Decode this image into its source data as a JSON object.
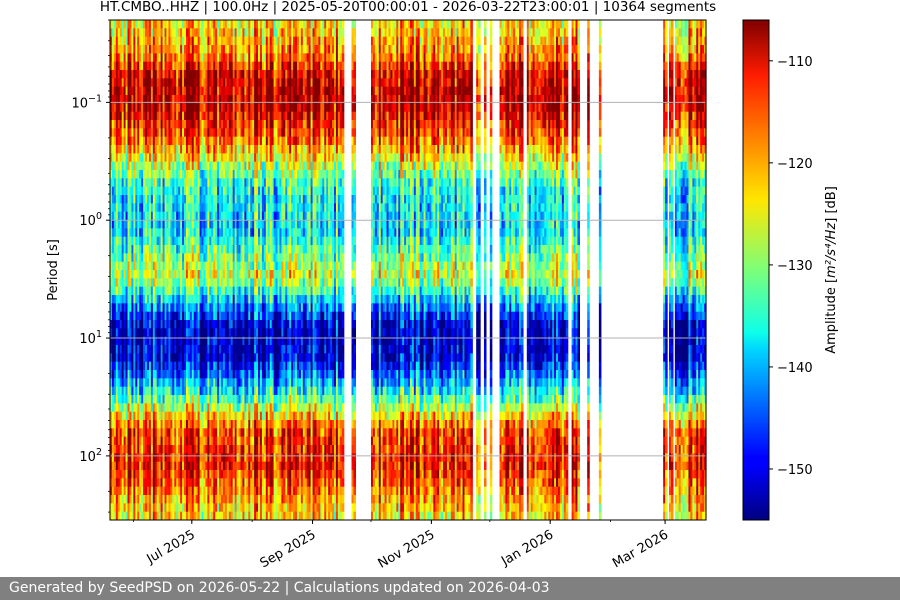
{
  "chart_data": {
    "type": "heatmap",
    "title": "HT.CMBO..HHZ | 100.0Hz | 2025-05-20T00:00:01 - 2026-03-22T23:00:01 | 10364 segments",
    "ylabel": "Period [s]",
    "y_scale": "log",
    "y_inverted": true,
    "ylim_period_s": [
      0.02,
      350
    ],
    "xlim": [
      "2025-05-20",
      "2026-03-22"
    ],
    "x_ticks": [
      {
        "date": "2025-07-01",
        "label": "Jul 2025"
      },
      {
        "date": "2025-09-01",
        "label": "Sep 2025"
      },
      {
        "date": "2025-11-01",
        "label": "Nov 2025"
      },
      {
        "date": "2026-01-01",
        "label": "Jan 2026"
      },
      {
        "date": "2026-03-01",
        "label": "Mar 2026"
      }
    ],
    "y_ticks": [
      {
        "value": 0.1,
        "base": "10",
        "exp": "−1"
      },
      {
        "value": 1,
        "base": "10",
        "exp": "0"
      },
      {
        "value": 10,
        "base": "10",
        "exp": "1"
      },
      {
        "value": 100,
        "base": "10",
        "exp": "2"
      }
    ],
    "colorbar": {
      "label_prefix": "Amplitude [",
      "label_unit": "m²/s⁴/Hz",
      "label_suffix": "] [dB]",
      "range_db": [
        -155,
        -106
      ],
      "ticks": [
        "−110",
        "−120",
        "−130",
        "−140",
        "−150"
      ],
      "tick_values": [
        -110,
        -120,
        -130,
        -140,
        -150
      ],
      "colormap": "jet"
    },
    "grid": true,
    "data_gaps": [
      [
        "2025-09-17",
        "2025-09-21"
      ],
      [
        "2025-09-23",
        "2025-10-01"
      ],
      [
        "2025-11-22",
        "2025-11-24"
      ],
      [
        "2025-11-26",
        "2025-11-28"
      ],
      [
        "2025-11-29",
        "2025-12-01"
      ],
      [
        "2025-12-02",
        "2025-12-06"
      ],
      [
        "2025-12-18",
        "2025-12-20"
      ],
      [
        "2026-01-10",
        "2026-01-12"
      ],
      [
        "2026-01-16",
        "2026-01-20"
      ],
      [
        "2026-01-21",
        "2026-01-26"
      ],
      [
        "2026-01-27",
        "2026-02-28"
      ],
      [
        "2026-03-02",
        "2026-03-03"
      ],
      [
        "2026-03-05",
        "2026-03-06"
      ]
    ],
    "spectrum_profile_db": [
      {
        "period_s": 0.02,
        "db": -124
      },
      {
        "period_s": 0.04,
        "db": -118
      },
      {
        "period_s": 0.06,
        "db": -110
      },
      {
        "period_s": 0.1,
        "db": -108
      },
      {
        "period_s": 0.2,
        "db": -116
      },
      {
        "period_s": 0.5,
        "db": -135
      },
      {
        "period_s": 1.2,
        "db": -138
      },
      {
        "period_s": 3,
        "db": -126
      },
      {
        "period_s": 5,
        "db": -140
      },
      {
        "period_s": 8,
        "db": -152
      },
      {
        "period_s": 15,
        "db": -151
      },
      {
        "period_s": 30,
        "db": -135
      },
      {
        "period_s": 60,
        "db": -115
      },
      {
        "period_s": 120,
        "db": -112
      },
      {
        "period_s": 200,
        "db": -118
      },
      {
        "period_s": 350,
        "db": -124
      }
    ]
  },
  "footer": {
    "text": "Generated by SeedPSD on 2026-05-22 | Calculations updated on 2026-04-03"
  }
}
